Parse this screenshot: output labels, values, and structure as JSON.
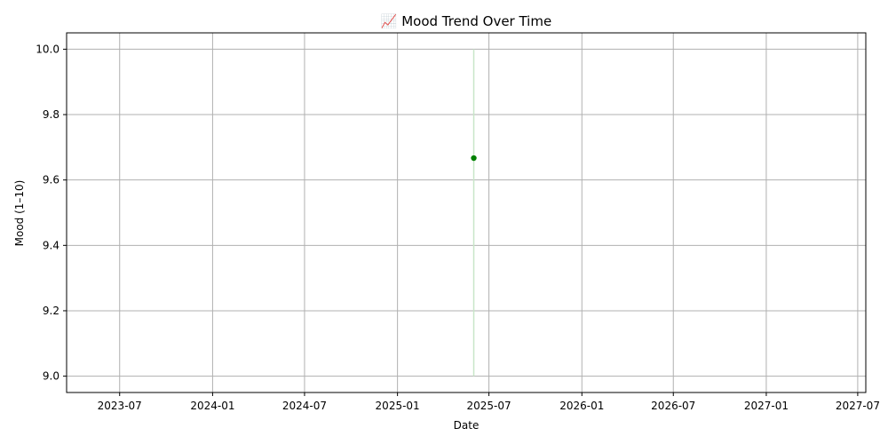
{
  "chart_data": {
    "type": "scatter",
    "title": "📈 Mood Trend Over Time",
    "xlabel": "Date",
    "ylabel": "Mood (1–10)",
    "x_type": "date",
    "xlim": [
      "2023-03-18",
      "2027-07-17"
    ],
    "ylim": [
      8.95,
      10.05
    ],
    "x_ticks": [
      {
        "value": "2023-07-01",
        "label": "2023-07"
      },
      {
        "value": "2024-01-01",
        "label": "2024-01"
      },
      {
        "value": "2024-07-01",
        "label": "2024-07"
      },
      {
        "value": "2025-01-01",
        "label": "2025-01"
      },
      {
        "value": "2025-07-01",
        "label": "2025-07"
      },
      {
        "value": "2026-01-01",
        "label": "2026-01"
      },
      {
        "value": "2026-07-01",
        "label": "2026-07"
      },
      {
        "value": "2027-01-01",
        "label": "2027-01"
      },
      {
        "value": "2027-07-01",
        "label": "2027-07"
      }
    ],
    "y_ticks": [
      9.0,
      9.2,
      9.4,
      9.6,
      9.8,
      10.0
    ],
    "grid": true,
    "series": [
      {
        "color": "#008000",
        "points": [
          {
            "x": "2025-06-01",
            "y": 9.667
          }
        ],
        "range_band": {
          "x": "2025-06-01",
          "low": 9.0,
          "high": 10.0,
          "color": "#c8e6c8"
        }
      }
    ]
  }
}
